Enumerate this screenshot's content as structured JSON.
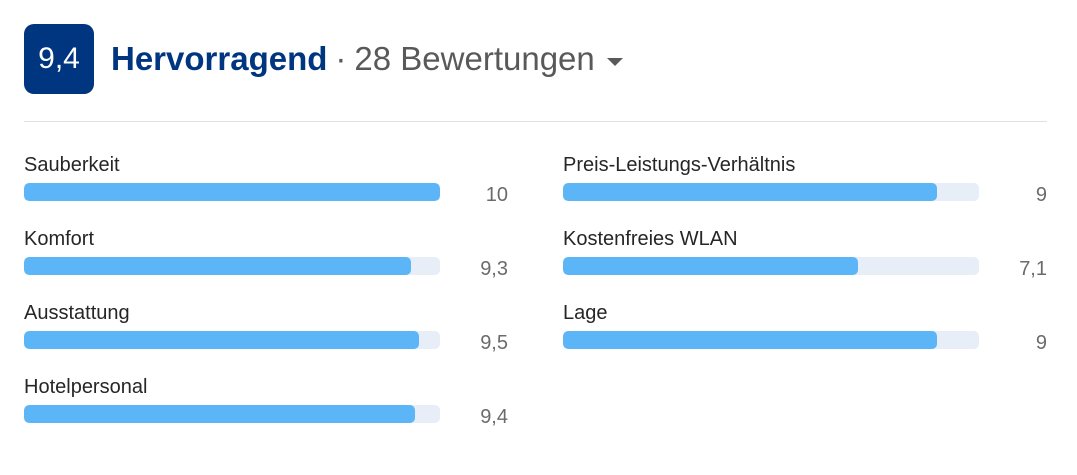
{
  "header": {
    "score": "9,4",
    "rating_word": "Hervorragend",
    "separator": "·",
    "count_label": "28 Bewertungen"
  },
  "colors": {
    "badge": "#003580",
    "bar_fill": "#5bb5f7",
    "bar_track": "#e8eef7"
  },
  "left_categories": [
    {
      "label": "Sauberkeit",
      "value": "10",
      "fraction": 1.0
    },
    {
      "label": "Komfort",
      "value": "9,3",
      "fraction": 0.93
    },
    {
      "label": "Ausstattung",
      "value": "9,5",
      "fraction": 0.95
    },
    {
      "label": "Hotelpersonal",
      "value": "9,4",
      "fraction": 0.94
    }
  ],
  "right_categories": [
    {
      "label": "Preis-Leistungs-Verhältnis",
      "value": "9",
      "fraction": 0.9
    },
    {
      "label": "Kostenfreies WLAN",
      "value": "7,1",
      "fraction": 0.71
    },
    {
      "label": "Lage",
      "value": "9",
      "fraction": 0.9
    }
  ]
}
